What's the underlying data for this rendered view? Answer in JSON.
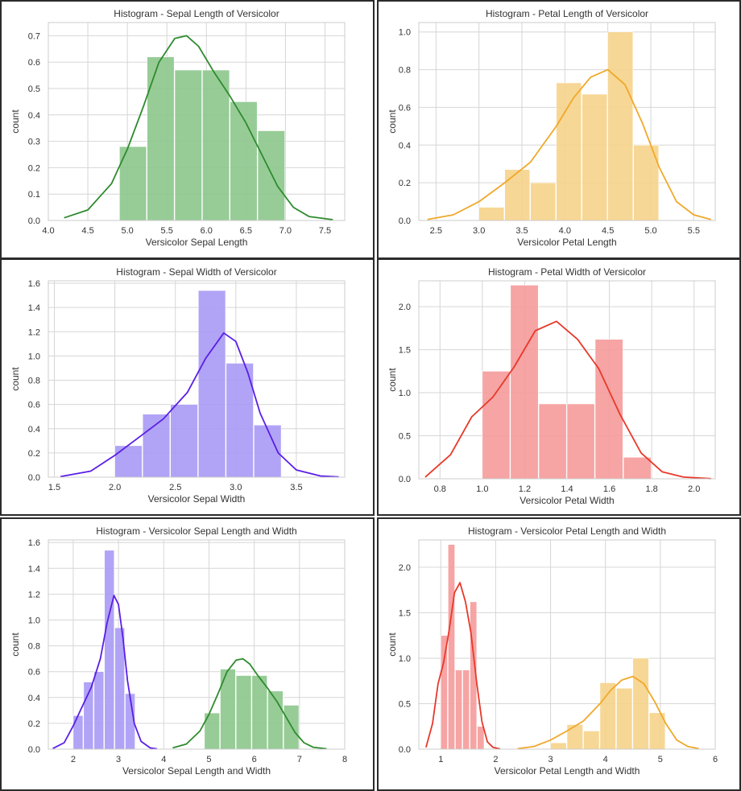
{
  "chart_data": [
    {
      "type": "bar",
      "title": "Histogram - Sepal Length of Versicolor",
      "xlabel": "Versicolor Sepal Length",
      "ylabel": "count",
      "xlim": [
        4.0,
        7.75
      ],
      "ylim": [
        0,
        0.75
      ],
      "xticks": [
        4.0,
        4.5,
        5.0,
        5.5,
        6.0,
        6.5,
        7.0,
        7.5
      ],
      "xtick_labels": [
        "4.0",
        "4.5",
        "5.0",
        "5.5",
        "6.0",
        "6.5",
        "7.0",
        "7.5"
      ],
      "yticks": [
        0,
        0.1,
        0.2,
        0.3,
        0.4,
        0.5,
        0.6,
        0.7
      ],
      "ytick_labels": [
        "0.0",
        "0.1",
        "0.2",
        "0.3",
        "0.4",
        "0.5",
        "0.6",
        "0.7"
      ],
      "grid": true,
      "series": [
        {
          "color": "#2e8b2e",
          "fill": "#8cc68c",
          "bins": [
            4.9,
            5.25,
            5.6,
            5.95,
            6.3,
            6.65,
            7.0
          ],
          "heights": [
            0.28,
            0.62,
            0.57,
            0.57,
            0.45,
            0.34
          ],
          "kde": {
            "x": [
              4.2,
              4.5,
              4.8,
              5.0,
              5.2,
              5.4,
              5.6,
              5.75,
              5.9,
              6.1,
              6.3,
              6.5,
              6.7,
              6.9,
              7.1,
              7.3,
              7.6
            ],
            "y": [
              0.01,
              0.04,
              0.14,
              0.27,
              0.43,
              0.6,
              0.69,
              0.7,
              0.66,
              0.56,
              0.47,
              0.37,
              0.25,
              0.13,
              0.05,
              0.015,
              0.003
            ]
          }
        }
      ]
    },
    {
      "type": "bar",
      "title": "Histogram - Petal Length of Versicolor",
      "xlabel": "Versicolor Petal Length",
      "ylabel": "count",
      "xlim": [
        2.3,
        5.75
      ],
      "ylim": [
        0,
        1.05
      ],
      "xticks": [
        2.5,
        3.0,
        3.5,
        4.0,
        4.5,
        5.0,
        5.5
      ],
      "xtick_labels": [
        "2.5",
        "3.0",
        "3.5",
        "4.0",
        "4.5",
        "5.0",
        "5.5"
      ],
      "yticks": [
        0,
        0.2,
        0.4,
        0.6,
        0.8,
        1.0
      ],
      "ytick_labels": [
        "0.0",
        "0.2",
        "0.4",
        "0.6",
        "0.8",
        "1.0"
      ],
      "grid": true,
      "series": [
        {
          "color": "#f0a82a",
          "fill": "#f6d389",
          "bins": [
            3.0,
            3.3,
            3.6,
            3.9,
            4.2,
            4.5,
            4.8,
            5.1
          ],
          "heights": [
            0.07,
            0.27,
            0.2,
            0.73,
            0.67,
            1.0,
            0.4
          ],
          "kde": {
            "x": [
              2.4,
              2.7,
              3.0,
              3.3,
              3.6,
              3.9,
              4.1,
              4.3,
              4.5,
              4.7,
              4.9,
              5.1,
              5.3,
              5.5,
              5.7
            ],
            "y": [
              0.005,
              0.03,
              0.1,
              0.2,
              0.31,
              0.5,
              0.65,
              0.76,
              0.8,
              0.72,
              0.52,
              0.28,
              0.1,
              0.03,
              0.005
            ]
          }
        }
      ]
    },
    {
      "type": "bar",
      "title": "Histogram - Sepal Width of Versicolor",
      "xlabel": "Versicolor Sepal Width",
      "ylabel": "count",
      "xlim": [
        1.45,
        3.9
      ],
      "ylim": [
        0,
        1.62
      ],
      "xticks": [
        1.5,
        2.0,
        2.5,
        3.0,
        3.5
      ],
      "xtick_labels": [
        "1.5",
        "2.0",
        "2.5",
        "3.0",
        "3.5"
      ],
      "yticks": [
        0,
        0.2,
        0.4,
        0.6,
        0.8,
        1.0,
        1.2,
        1.4,
        1.6
      ],
      "ytick_labels": [
        "0.0",
        "0.2",
        "0.4",
        "0.6",
        "0.8",
        "1.0",
        "1.2",
        "1.4",
        "1.6"
      ],
      "grid": true,
      "series": [
        {
          "color": "#5a1ee6",
          "fill": "#a99af5",
          "bins": [
            2.0,
            2.23,
            2.46,
            2.69,
            2.92,
            3.15,
            3.38
          ],
          "heights": [
            0.26,
            0.52,
            0.6,
            1.54,
            0.94,
            0.43
          ],
          "kde": {
            "x": [
              1.55,
              1.8,
              2.0,
              2.2,
              2.4,
              2.6,
              2.75,
              2.9,
              3.0,
              3.1,
              3.2,
              3.35,
              3.5,
              3.7,
              3.85
            ],
            "y": [
              0.005,
              0.05,
              0.18,
              0.33,
              0.48,
              0.7,
              0.98,
              1.19,
              1.12,
              0.86,
              0.53,
              0.2,
              0.06,
              0.01,
              0.002
            ]
          }
        }
      ]
    },
    {
      "type": "bar",
      "title": "Histogram - Petal Width of Versicolor",
      "xlabel": "Versicolor Petal Width",
      "ylabel": "count",
      "xlim": [
        0.7,
        2.1
      ],
      "ylim": [
        0,
        2.3
      ],
      "xticks": [
        0.8,
        1.0,
        1.2,
        1.4,
        1.6,
        1.8,
        2.0
      ],
      "xtick_labels": [
        "0.8",
        "1.0",
        "1.2",
        "1.4",
        "1.6",
        "1.8",
        "2.0"
      ],
      "yticks": [
        0,
        0.5,
        1.0,
        1.5,
        2.0
      ],
      "ytick_labels": [
        "0.0",
        "0.5",
        "1.0",
        "1.5",
        "2.0"
      ],
      "grid": true,
      "series": [
        {
          "color": "#e8392a",
          "fill": "#f59a9a",
          "bins": [
            1.0,
            1.133,
            1.267,
            1.4,
            1.533,
            1.667,
            1.8
          ],
          "heights": [
            1.25,
            2.25,
            0.87,
            0.87,
            1.62,
            0.25
          ],
          "kde": {
            "x": [
              0.73,
              0.85,
              0.95,
              1.05,
              1.15,
              1.25,
              1.35,
              1.45,
              1.55,
              1.65,
              1.75,
              1.85,
              1.95,
              2.08
            ],
            "y": [
              0.02,
              0.28,
              0.72,
              0.95,
              1.3,
              1.72,
              1.83,
              1.62,
              1.28,
              0.75,
              0.3,
              0.08,
              0.02,
              0.002
            ]
          }
        }
      ]
    },
    {
      "type": "bar",
      "title": "Histogram - Versicolor Sepal Length and Width",
      "xlabel": "Versicolor Sepal Length and Width",
      "ylabel": "count",
      "xlim": [
        1.45,
        8.0
      ],
      "ylim": [
        0,
        1.62
      ],
      "xticks": [
        2,
        3,
        4,
        5,
        6,
        7,
        8
      ],
      "xtick_labels": [
        "2",
        "3",
        "4",
        "5",
        "6",
        "7",
        "8"
      ],
      "yticks": [
        0,
        0.2,
        0.4,
        0.6,
        0.8,
        1.0,
        1.2,
        1.4,
        1.6
      ],
      "ytick_labels": [
        "0.0",
        "0.2",
        "0.4",
        "0.6",
        "0.8",
        "1.0",
        "1.2",
        "1.4",
        "1.6"
      ],
      "grid": true,
      "series": [
        {
          "color": "#5a1ee6",
          "fill": "#a99af5",
          "bins": [
            2.0,
            2.23,
            2.46,
            2.69,
            2.92,
            3.15,
            3.38
          ],
          "heights": [
            0.26,
            0.52,
            0.6,
            1.54,
            0.94,
            0.43
          ],
          "kde": {
            "x": [
              1.55,
              1.8,
              2.0,
              2.2,
              2.4,
              2.6,
              2.75,
              2.9,
              3.0,
              3.1,
              3.2,
              3.35,
              3.5,
              3.7,
              3.85
            ],
            "y": [
              0.005,
              0.05,
              0.18,
              0.33,
              0.48,
              0.7,
              0.98,
              1.19,
              1.12,
              0.86,
              0.53,
              0.2,
              0.06,
              0.01,
              0.002
            ]
          }
        },
        {
          "color": "#2e8b2e",
          "fill": "#8cc68c",
          "bins": [
            4.9,
            5.25,
            5.6,
            5.95,
            6.3,
            6.65,
            7.0
          ],
          "heights": [
            0.28,
            0.62,
            0.57,
            0.57,
            0.45,
            0.34
          ],
          "kde": {
            "x": [
              4.2,
              4.5,
              4.8,
              5.0,
              5.2,
              5.4,
              5.6,
              5.75,
              5.9,
              6.1,
              6.3,
              6.5,
              6.7,
              6.9,
              7.1,
              7.3,
              7.6
            ],
            "y": [
              0.01,
              0.04,
              0.14,
              0.27,
              0.43,
              0.6,
              0.69,
              0.7,
              0.66,
              0.56,
              0.47,
              0.37,
              0.25,
              0.13,
              0.05,
              0.015,
              0.003
            ]
          }
        }
      ]
    },
    {
      "type": "bar",
      "title": "Histogram - Versicolor Petal Length and Width",
      "xlabel": "Versicolor Petal Length and Width",
      "ylabel": "count",
      "xlim": [
        0.6,
        6.0
      ],
      "ylim": [
        0,
        2.3
      ],
      "xticks": [
        1,
        2,
        3,
        4,
        5,
        6
      ],
      "xtick_labels": [
        "1",
        "2",
        "3",
        "4",
        "5",
        "6"
      ],
      "yticks": [
        0,
        0.5,
        1.0,
        1.5,
        2.0
      ],
      "ytick_labels": [
        "0.0",
        "0.5",
        "1.0",
        "1.5",
        "2.0"
      ],
      "grid": true,
      "series": [
        {
          "color": "#e8392a",
          "fill": "#f59a9a",
          "bins": [
            1.0,
            1.133,
            1.267,
            1.4,
            1.533,
            1.667,
            1.8
          ],
          "heights": [
            1.25,
            2.25,
            0.87,
            0.87,
            1.62,
            0.25
          ],
          "kde": {
            "x": [
              0.73,
              0.85,
              0.95,
              1.05,
              1.15,
              1.25,
              1.35,
              1.45,
              1.55,
              1.65,
              1.75,
              1.85,
              1.95,
              2.08
            ],
            "y": [
              0.02,
              0.28,
              0.72,
              0.95,
              1.3,
              1.72,
              1.83,
              1.62,
              1.28,
              0.75,
              0.3,
              0.08,
              0.02,
              0.002
            ]
          }
        },
        {
          "color": "#f0a82a",
          "fill": "#f6d389",
          "bins": [
            3.0,
            3.3,
            3.6,
            3.9,
            4.2,
            4.5,
            4.8,
            5.1
          ],
          "heights": [
            0.07,
            0.27,
            0.2,
            0.73,
            0.67,
            1.0,
            0.4
          ],
          "kde": {
            "x": [
              2.4,
              2.7,
              3.0,
              3.3,
              3.6,
              3.9,
              4.1,
              4.3,
              4.5,
              4.7,
              4.9,
              5.1,
              5.3,
              5.5,
              5.7
            ],
            "y": [
              0.005,
              0.03,
              0.1,
              0.2,
              0.31,
              0.5,
              0.65,
              0.76,
              0.8,
              0.72,
              0.52,
              0.28,
              0.1,
              0.03,
              0.005
            ]
          }
        }
      ]
    }
  ]
}
